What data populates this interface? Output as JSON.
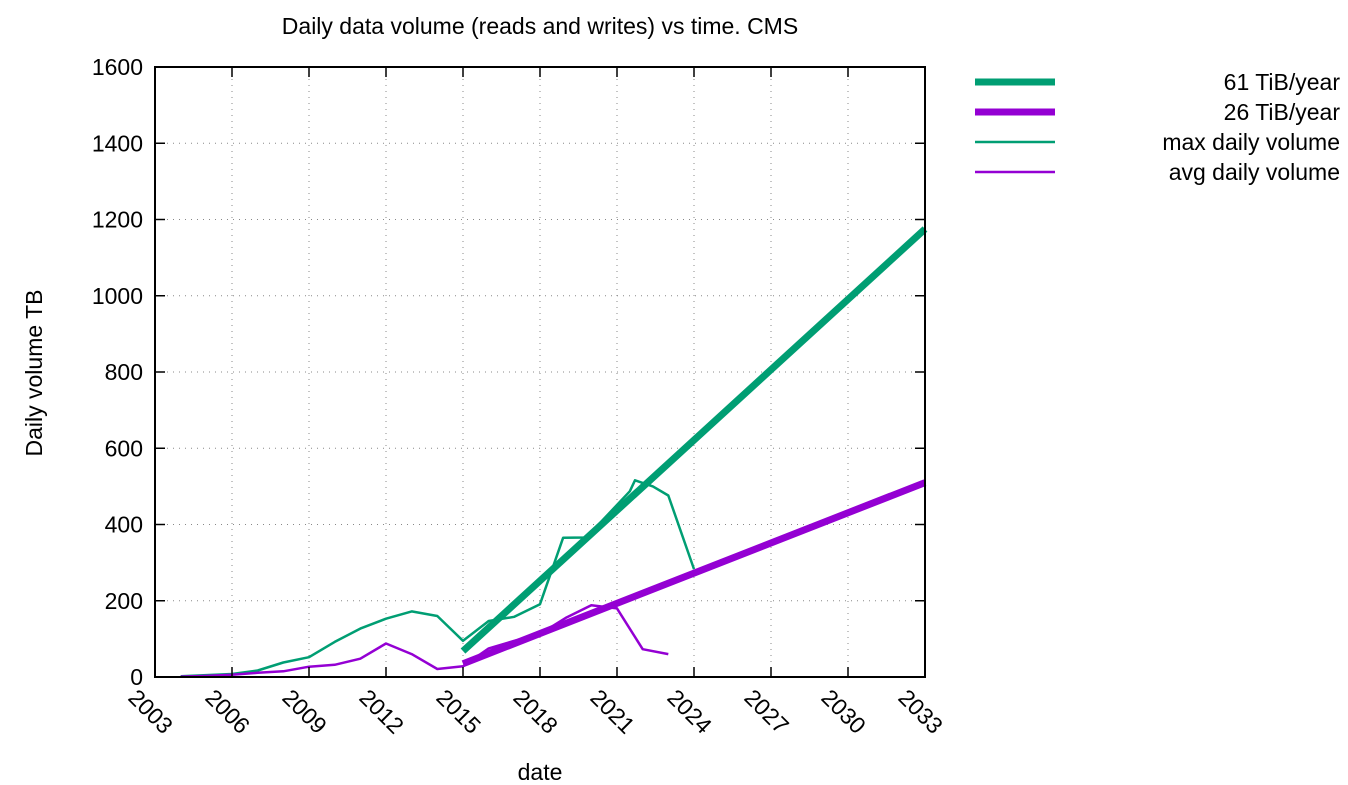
{
  "chart_data": {
    "type": "line",
    "title": "Daily data volume (reads and writes) vs time.  CMS",
    "xlabel": "date",
    "ylabel": "Daily volume TB",
    "xlim": [
      2003,
      2033
    ],
    "ylim": [
      0,
      1600
    ],
    "x_ticks": [
      "2003",
      "2006",
      "2009",
      "2012",
      "2015",
      "2018",
      "2021",
      "2024",
      "2027",
      "2030",
      "2033"
    ],
    "y_ticks": [
      "0",
      "200",
      "400",
      "600",
      "800",
      "1000",
      "1200",
      "1400",
      "1600"
    ],
    "grid": true,
    "legend_position": "top-right",
    "series": [
      {
        "name": "61 TiB/year",
        "color": "#009e73",
        "style": "thick",
        "x": [
          2015,
          2033
        ],
        "y": [
          68,
          1175
        ]
      },
      {
        "name": "26 TiB/year",
        "color": "#9400d3",
        "style": "thick",
        "x": [
          2015,
          2033
        ],
        "y": [
          35,
          510
        ]
      },
      {
        "name": "max daily volume",
        "color": "#009e73",
        "style": "thin",
        "x": [
          2004,
          2005,
          2006,
          2007,
          2008,
          2009,
          2010,
          2011,
          2012,
          2013,
          2014,
          2015,
          2016,
          2017,
          2018,
          2018.9,
          2019.8,
          2020.7,
          2021.5,
          2021.7,
          2022.4,
          2023,
          2024
        ],
        "y": [
          2,
          5,
          8,
          17,
          38,
          52,
          92,
          127,
          153,
          172,
          160,
          95,
          147,
          158,
          191,
          365,
          366,
          430,
          487,
          516,
          500,
          476,
          283
        ]
      },
      {
        "name": "avg daily volume",
        "color": "#9400d3",
        "style": "thin",
        "x": [
          2004,
          2005,
          2006,
          2007,
          2008,
          2009,
          2010,
          2011,
          2012,
          2013,
          2014,
          2015,
          2016,
          2017,
          2018,
          2019,
          2020,
          2021,
          2022,
          2023
        ],
        "y": [
          1,
          3,
          6,
          11,
          15,
          27,
          32,
          48,
          88,
          60,
          21,
          28,
          75,
          95,
          113,
          155,
          188,
          180,
          73,
          60
        ]
      }
    ]
  }
}
